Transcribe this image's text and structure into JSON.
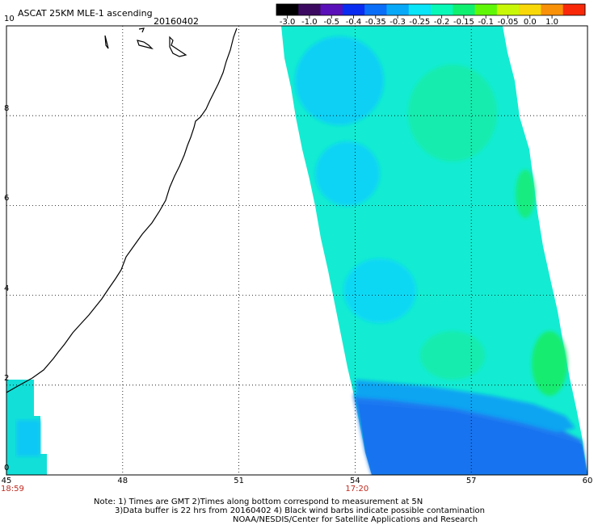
{
  "title": "ASCAT 25KM MLE-1 ascending",
  "date": "20160402",
  "colorbar": {
    "ticks": [
      "-3.0",
      "-1.0",
      "-0.5",
      "-0.4",
      "-0.35",
      "-0.3",
      "-0.25",
      "-0.2",
      "-0.15",
      "-0.1",
      "-0.05",
      "0.0",
      "1.0"
    ],
    "colors": [
      "#000000",
      "#3b0a60",
      "#5a10b8",
      "#0a2cf0",
      "#0a6ef8",
      "#08a8f8",
      "#08e4f8",
      "#08f8b8",
      "#10f070",
      "#60f808",
      "#c8f808",
      "#f8d808",
      "#f89008",
      "#f82808"
    ]
  },
  "axes": {
    "x_labels": [
      "45",
      "48",
      "51",
      "54",
      "57",
      "60"
    ],
    "y_labels": [
      "0",
      "2",
      "4",
      "6",
      "8",
      "10"
    ],
    "xlim": [
      45,
      60
    ],
    "ylim": [
      0,
      10
    ]
  },
  "time_labels": [
    {
      "text": "18:59",
      "lon": 45
    },
    {
      "text": "17:20",
      "lon": 54
    }
  ],
  "notes": [
    "Note: 1) Times are GMT 2)Times along bottom correspond to measurement at 5N",
    "3)Data buffer is 22 hrs from 20160402 4) Black wind barbs indicate possible contamination",
    "NOAA/NESDIS/Center for Satellite Applications and Research"
  ]
}
